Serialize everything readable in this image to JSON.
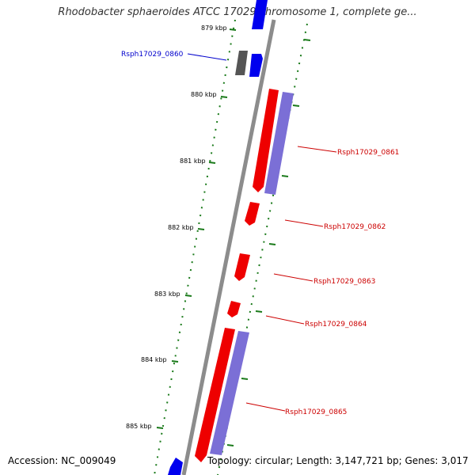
{
  "title": "Rhodobacter sphaeroides ATCC 17029 chromosome 1, complete ge...",
  "ticks": [
    {
      "label": "879 kbp"
    },
    {
      "label": "880 kbp"
    },
    {
      "label": "881 kbp"
    },
    {
      "label": "882 kbp"
    },
    {
      "label": "883 kbp"
    },
    {
      "label": "884 kbp"
    },
    {
      "label": "885 kbp"
    }
  ],
  "genes": [
    {
      "label": "Rsph17029_0860",
      "color": "#0000cc"
    },
    {
      "label": "Rsph17029_0861",
      "color": "#cc0000"
    },
    {
      "label": "Rsph17029_0862",
      "color": "#cc0000"
    },
    {
      "label": "Rsph17029_0863",
      "color": "#cc0000"
    },
    {
      "label": "Rsph17029_0864",
      "color": "#cc0000"
    },
    {
      "label": "Rsph17029_0865",
      "color": "#cc0000"
    }
  ],
  "colors": {
    "backbone": "#8c8c8c",
    "forward_gene": "#0000ee",
    "reverse_gene": "#ee0000",
    "cds": "#7b6fd6",
    "other_gene": "#555555",
    "tick": "#1a7a1a"
  },
  "footer": {
    "accession": "Accession: NC_009049",
    "summary": "Topology: circular; Length: 3,147,721 bp; Genes: 3,017"
  }
}
